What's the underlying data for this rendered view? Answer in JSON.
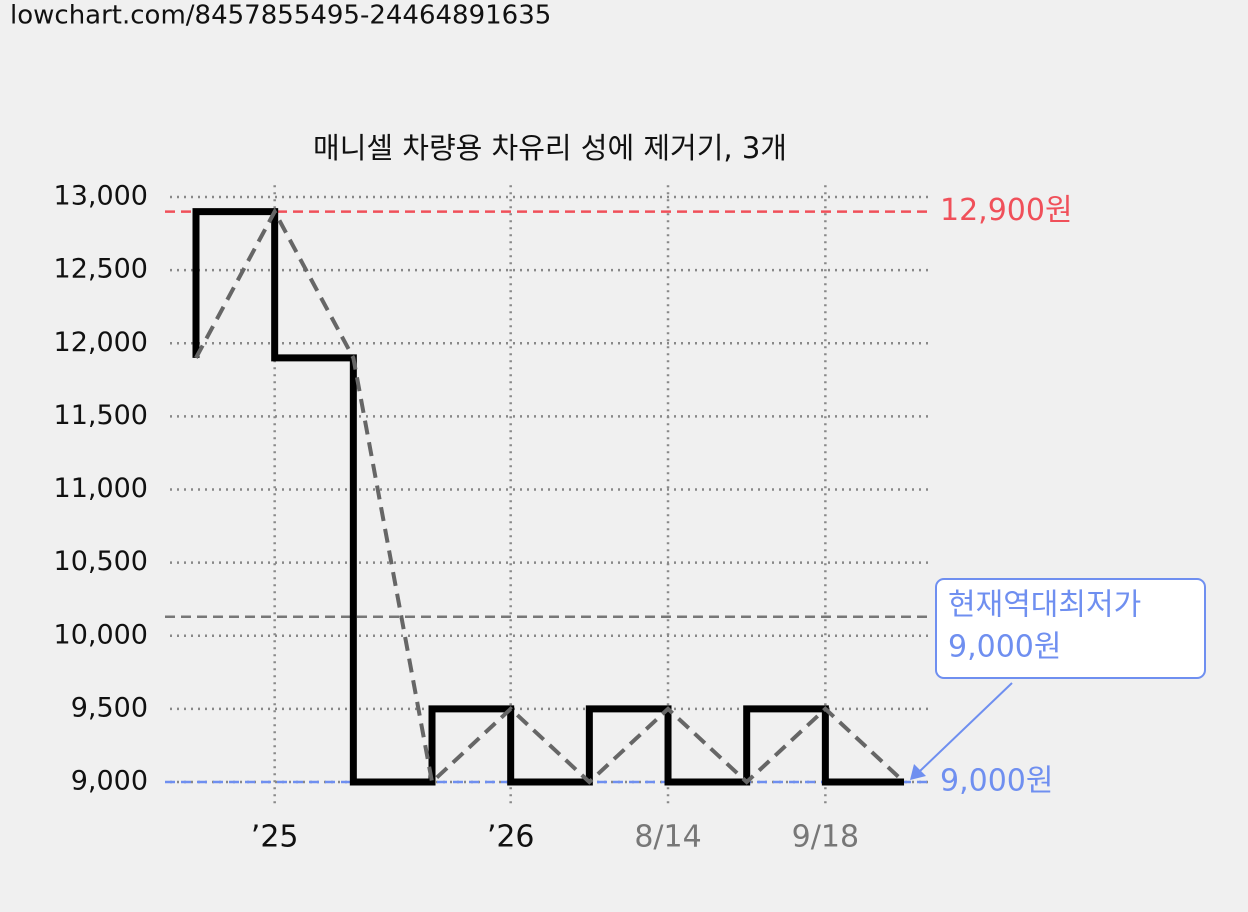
{
  "url": "lowchart.com/8457855495-24464891635",
  "chart_data": {
    "type": "step",
    "title": "매니셀 차량용 차유리 성에 제거기, 3개",
    "categories": [
      null,
      "’25",
      null,
      null,
      "’26",
      null,
      "8/14",
      null,
      "9/18",
      null
    ],
    "category_colors": [
      null,
      "#111111",
      null,
      null,
      "#111111",
      null,
      "#777777",
      null,
      "#777777",
      null
    ],
    "series": [
      {
        "color": "#000000",
        "trend_color": "#666666",
        "values": [
          11900,
          12900,
          11900,
          9000,
          9500,
          9000,
          9500,
          9000,
          9500,
          9000
        ]
      }
    ],
    "ylim": [
      8920,
      13080
    ],
    "yticks": [
      {
        "value": 9000,
        "label": "9,000"
      },
      {
        "value": 9500,
        "label": "9,500"
      },
      {
        "value": 10000,
        "label": "10,000"
      },
      {
        "value": 10500,
        "label": "10,500"
      },
      {
        "value": 11000,
        "label": "11,000"
      },
      {
        "value": 11500,
        "label": "11,500"
      },
      {
        "value": 12000,
        "label": "12,000"
      },
      {
        "value": 12500,
        "label": "12,500"
      },
      {
        "value": 13000,
        "label": "13,000"
      }
    ],
    "grid": true,
    "reference_lines": [
      {
        "value": 12900,
        "label": "12,900원",
        "color": "#f0505a"
      },
      {
        "value": 9000,
        "label": "9,000원",
        "color": "#6f8ff0"
      },
      {
        "value": 10130,
        "color": "#777777"
      }
    ],
    "annotation": {
      "lines": [
        "현재역대최저가",
        "9,000원"
      ],
      "color": "#6f8ff0"
    }
  }
}
